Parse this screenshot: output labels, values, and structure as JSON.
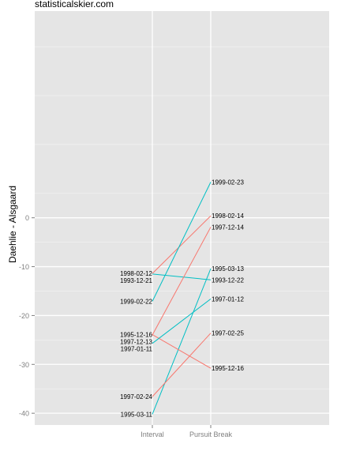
{
  "caption": "statisticalskier.com",
  "chart_data": {
    "type": "line",
    "ylabel": "Daehlie - Alsgaard",
    "xlabel": "",
    "categories": [
      "Interval",
      "Pursuit Break"
    ],
    "ylim": [
      -42.4,
      42.3
    ],
    "yticks": [
      0,
      -10,
      -20,
      -30,
      -40
    ],
    "grid": true,
    "legend": "none",
    "colors": {
      "red": "#F8766D",
      "teal": "#00BFC4",
      "panel": "#E5E5E5",
      "gridline": "#FFFFFF"
    },
    "pairs": [
      {
        "from": {
          "label": "1993-12-21",
          "value": -11.5
        },
        "to": {
          "label": "1993-12-22",
          "value": -12.7
        },
        "color": "#00BFC4"
      },
      {
        "from": {
          "label": "1995-03-11",
          "value": -40.2
        },
        "to": {
          "label": "1995-03-13",
          "value": -10.4
        },
        "color": "#00BFC4"
      },
      {
        "from": {
          "label": "1995-12-16",
          "value": -23.9
        },
        "to": {
          "label": "1995-12-16",
          "value": -30.8
        },
        "color": "#F8766D"
      },
      {
        "from": {
          "label": "1997-01-11",
          "value": -25.7
        },
        "to": {
          "label": "1997-01-12",
          "value": -16.6
        },
        "color": "#00BFC4"
      },
      {
        "from": {
          "label": "1997-02-24",
          "value": -36.6
        },
        "to": {
          "label": "1997-02-25",
          "value": -23.6
        },
        "color": "#F8766D"
      },
      {
        "from": {
          "label": "1997-12-13",
          "value": -24.0
        },
        "to": {
          "label": "1997-12-14",
          "value": -1.9
        },
        "color": "#F8766D"
      },
      {
        "from": {
          "label": "1998-02-12",
          "value": -11.4
        },
        "to": {
          "label": "1998-02-14",
          "value": 0.4
        },
        "color": "#F8766D"
      },
      {
        "from": {
          "label": "1999-02-22",
          "value": -17.1
        },
        "to": {
          "label": "1999-02-23",
          "value": 7.3
        },
        "color": "#00BFC4"
      }
    ],
    "left_label_order": [
      "1998-02-12",
      "1993-12-21",
      "1999-02-22",
      "1995-12-16",
      "1997-12-13",
      "1997-01-11",
      "1997-02-24",
      "1995-03-11"
    ]
  }
}
